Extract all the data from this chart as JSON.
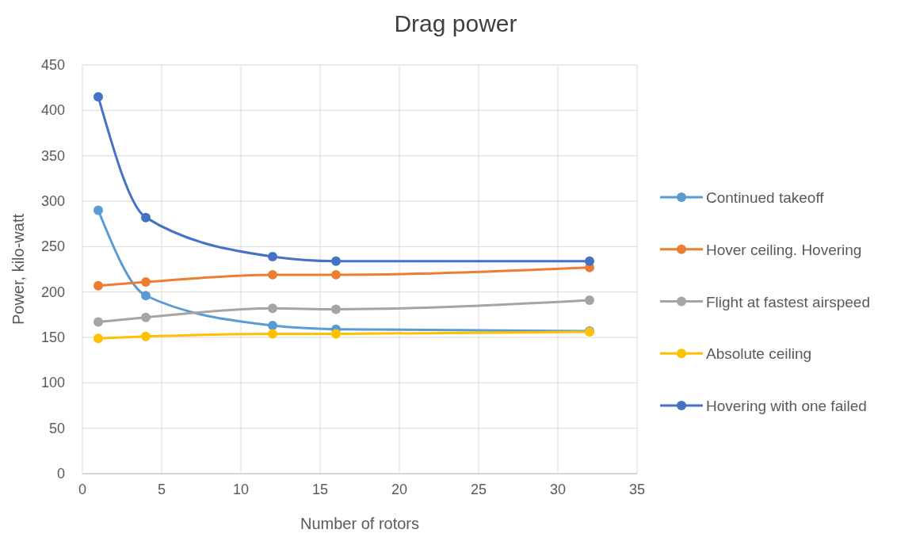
{
  "chart_data": {
    "type": "line",
    "title": "Drag power",
    "xlabel": "Number of rotors",
    "ylabel": "Power, kilo-watt",
    "x": [
      1,
      4,
      12,
      16,
      32
    ],
    "series": [
      {
        "name": "Continued takeoff",
        "color": "#5b9bd5",
        "values": [
          290,
          196,
          163,
          159,
          157
        ]
      },
      {
        "name": "Hover ceiling. Hovering",
        "color": "#ed7d31",
        "values": [
          207,
          211,
          219,
          219,
          227
        ]
      },
      {
        "name": "Flight at fastest airspeed",
        "color": "#a5a5a5",
        "values": [
          167,
          172,
          182,
          181,
          191
        ]
      },
      {
        "name": "Absolute ceiling",
        "color": "#ffc000",
        "values": [
          149,
          151,
          154,
          154,
          156
        ]
      },
      {
        "name": "Hovering with one failed",
        "color": "#4472c4",
        "values": [
          415,
          282,
          239,
          234,
          234
        ]
      }
    ],
    "xlim": [
      0,
      35
    ],
    "xticks": [
      0,
      5,
      10,
      15,
      20,
      25,
      30,
      35
    ],
    "ylim": [
      0,
      450
    ],
    "yticks": [
      0,
      50,
      100,
      150,
      200,
      250,
      300,
      350,
      400,
      450
    ],
    "grid": true,
    "legend": "right",
    "marker": "circle",
    "line_style": "solid"
  }
}
